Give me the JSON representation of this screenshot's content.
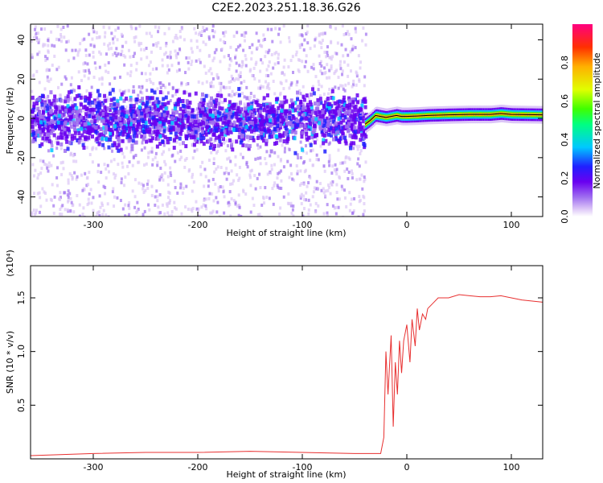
{
  "title": "C2E2.2023.251.18.36.G26",
  "chart_data": [
    {
      "type": "heatmap",
      "xlabel": "Height of straight line (km)",
      "ylabel": "Frequency (Hz)",
      "xlim": [
        -360,
        130
      ],
      "ylim": [
        -50,
        48
      ],
      "xticks": [
        -300,
        -200,
        -100,
        0,
        100
      ],
      "yticks": [
        -40,
        -20,
        0,
        20,
        40
      ],
      "colorbar": {
        "label": "Normalized spectral amplitude",
        "range": [
          0.0,
          1.0
        ],
        "ticks": [
          0.0,
          0.2,
          0.4,
          0.6,
          0.8
        ],
        "colormap": "rainbow",
        "colors": [
          "#ffffff",
          "#dcc6f7",
          "#a070f0",
          "#6a00f0",
          "#2020ff",
          "#00c8ff",
          "#00ff80",
          "#40ff00",
          "#e0ff00",
          "#ffb000",
          "#ff3000",
          "#ff0080"
        ]
      },
      "features": [
        {
          "x_range": [
            -360,
            -40
          ],
          "description_value": "scattered low amplitude noise, central band near 0 Hz with amplitude ~0.1-0.3"
        },
        {
          "x_range": [
            -40,
            130
          ],
          "frequency_hz": 1.5,
          "amplitude": 0.85
        }
      ],
      "carrier_line": {
        "x": [
          -40,
          -35,
          -30,
          -25,
          -20,
          -15,
          -10,
          -5,
          0,
          10,
          20,
          40,
          60,
          80,
          90,
          100,
          130
        ],
        "y": [
          -3,
          -1,
          1.5,
          1,
          0.5,
          1,
          1.5,
          1,
          1,
          1.2,
          1.5,
          1.8,
          2,
          2,
          2.5,
          2,
          1.8
        ]
      }
    },
    {
      "type": "line",
      "xlabel": "Height of straight line (km)",
      "ylabel": "SNR (10 * v/v)",
      "y_multiplier": "(x10⁴)",
      "xlim": [
        -360,
        130
      ],
      "ylim": [
        0,
        1.8
      ],
      "xticks": [
        -300,
        -200,
        -100,
        0,
        100
      ],
      "yticks": [
        0.5,
        1.0,
        1.5
      ],
      "ytick_labels": [
        "0.5",
        "1.0",
        "1.5"
      ],
      "color": "#e83030",
      "series": [
        {
          "x": [
            -360,
            -300,
            -250,
            -200,
            -150,
            -100,
            -50,
            -25,
            -22,
            -20,
            -18,
            -15,
            -13,
            -11,
            -9,
            -7,
            -5,
            -3,
            0,
            3,
            5,
            8,
            10,
            12,
            15,
            18,
            20,
            25,
            30,
            40,
            50,
            60,
            70,
            80,
            90,
            100,
            110,
            120,
            130
          ],
          "y": [
            0.03,
            0.05,
            0.06,
            0.06,
            0.07,
            0.06,
            0.05,
            0.05,
            0.2,
            1.0,
            0.6,
            1.15,
            0.3,
            0.9,
            0.6,
            1.1,
            0.8,
            1.1,
            1.25,
            0.9,
            1.3,
            1.05,
            1.4,
            1.2,
            1.35,
            1.3,
            1.4,
            1.45,
            1.5,
            1.5,
            1.53,
            1.52,
            1.51,
            1.51,
            1.52,
            1.5,
            1.48,
            1.47,
            1.46
          ]
        }
      ]
    }
  ]
}
